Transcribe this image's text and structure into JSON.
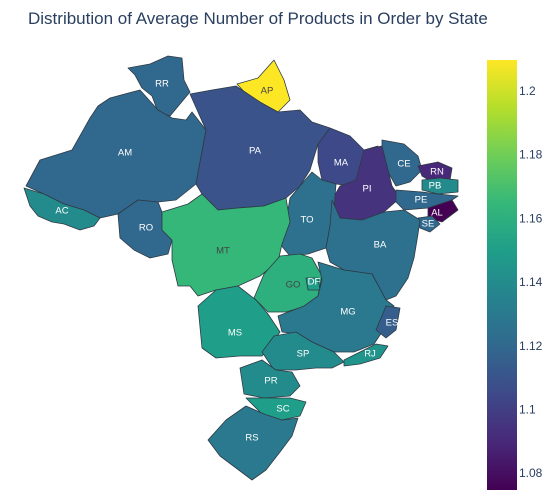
{
  "title": "Distribution of Average Number of Products in Order by State",
  "colorscale": {
    "name": "Viridis",
    "min": 1.075,
    "max": 1.21,
    "stops": [
      "#440154",
      "#482878",
      "#3e4989",
      "#31688e",
      "#26828e",
      "#1f9e89",
      "#35b779",
      "#6ece58",
      "#b5de2b",
      "#fde725"
    ],
    "ticks": [
      "1.08",
      "1.1",
      "1.12",
      "1.14",
      "1.16",
      "1.18",
      "1.2"
    ]
  },
  "states": [
    {
      "code": "RR",
      "value": 1.12
    },
    {
      "code": "AP",
      "value": 1.21
    },
    {
      "code": "AM",
      "value": 1.12
    },
    {
      "code": "PA",
      "value": 1.11
    },
    {
      "code": "MA",
      "value": 1.105
    },
    {
      "code": "CE",
      "value": 1.12
    },
    {
      "code": "RN",
      "value": 1.09
    },
    {
      "code": "PB",
      "value": 1.14
    },
    {
      "code": "PI",
      "value": 1.095
    },
    {
      "code": "PE",
      "value": 1.12
    },
    {
      "code": "AL",
      "value": 1.075
    },
    {
      "code": "SE",
      "value": 1.12
    },
    {
      "code": "AC",
      "value": 1.14
    },
    {
      "code": "RO",
      "value": 1.12
    },
    {
      "code": "TO",
      "value": 1.125
    },
    {
      "code": "BA",
      "value": 1.125
    },
    {
      "code": "MT",
      "value": 1.165
    },
    {
      "code": "GO",
      "value": 1.16
    },
    {
      "code": "DF",
      "value": 1.15
    },
    {
      "code": "MG",
      "value": 1.13
    },
    {
      "code": "ES",
      "value": 1.115
    },
    {
      "code": "MS",
      "value": 1.15
    },
    {
      "code": "SP",
      "value": 1.14
    },
    {
      "code": "RJ",
      "value": 1.145
    },
    {
      "code": "PR",
      "value": 1.14
    },
    {
      "code": "SC",
      "value": 1.15
    },
    {
      "code": "RS",
      "value": 1.13
    }
  ]
}
